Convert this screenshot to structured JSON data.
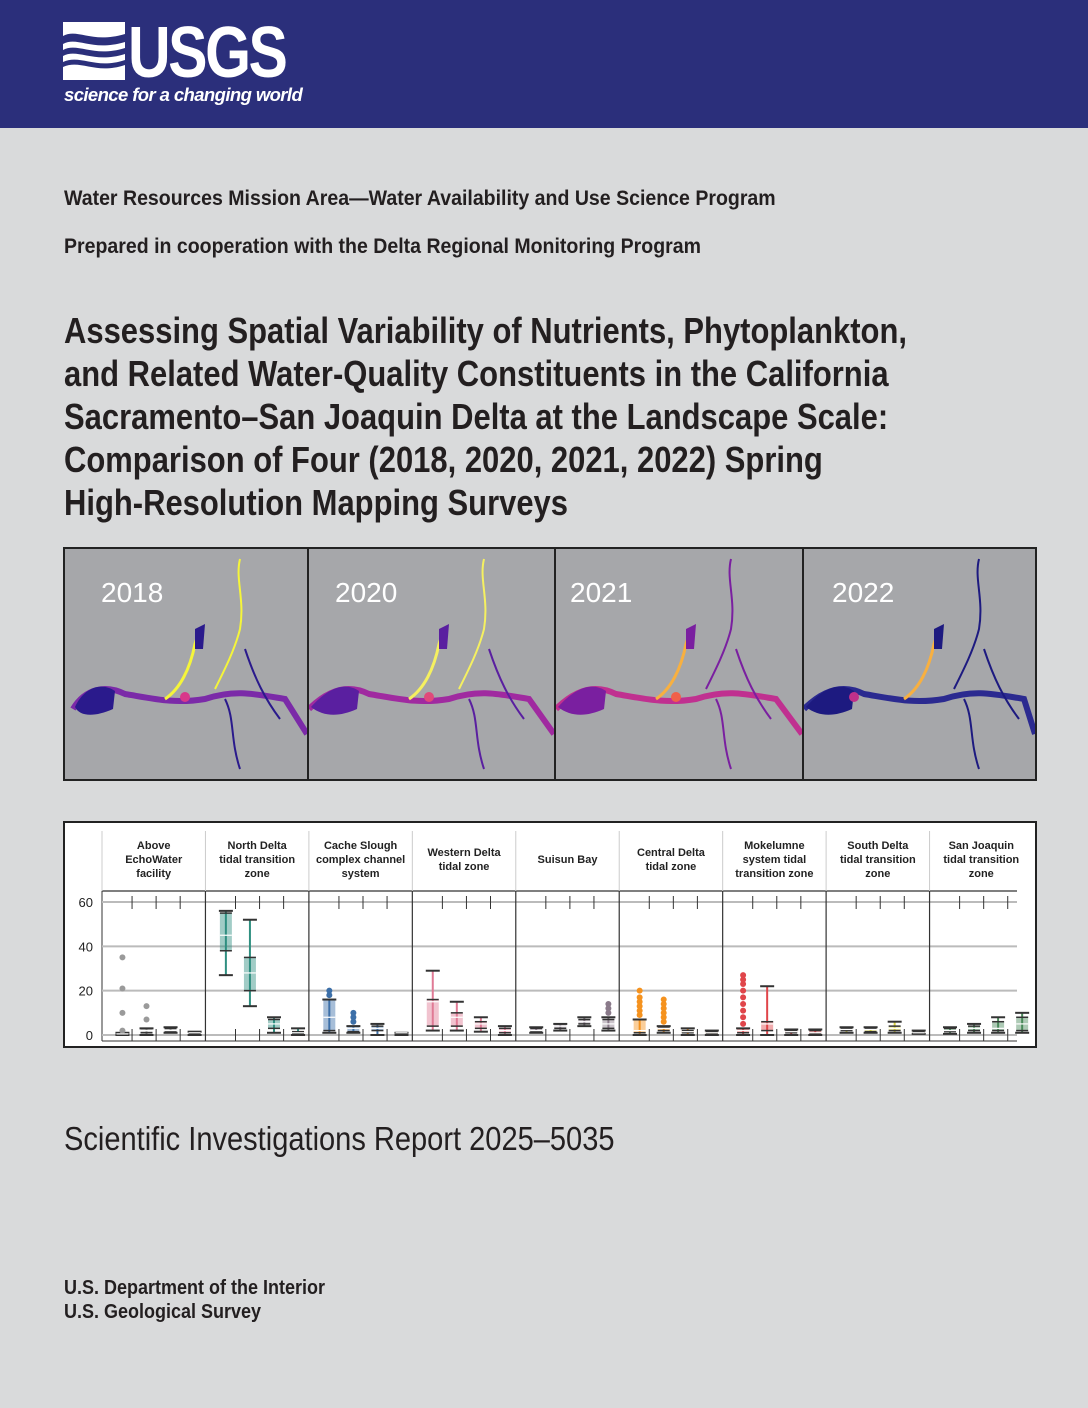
{
  "header": {
    "logo_text": "USGS",
    "logo_tagline": "science for a changing world",
    "color": "#2b2f7b"
  },
  "program_line": "Water Resources Mission Area—Water Availability and Use Science Program",
  "cooperation_line": "Prepared in cooperation with the Delta Regional Monitoring Program",
  "title_lines": [
    "Assessing Spatial Variability of Nutrients, Phytoplankton,",
    "and Related Water-Quality Constituents in the California",
    "Sacramento–San Joaquin Delta at the Landscape Scale:",
    "Comparison of Four (2018, 2020, 2021, 2022) Spring",
    "High-Resolution Mapping Surveys"
  ],
  "maps": [
    {
      "year": "2018",
      "palette": [
        "#2a1a8c",
        "#7b2aa8",
        "#d8388a",
        "#f5f53a"
      ]
    },
    {
      "year": "2020",
      "palette": [
        "#5a1fa0",
        "#a02aa0",
        "#e04a7a",
        "#f5f060"
      ]
    },
    {
      "year": "2021",
      "palette": [
        "#7a1fa0",
        "#c03090",
        "#f0604a",
        "#f8b040"
      ]
    },
    {
      "year": "2022",
      "palette": [
        "#1d1a80",
        "#2b2a90",
        "#c0308a",
        "#f8b040"
      ]
    }
  ],
  "chart_data": {
    "type": "box",
    "ylim": [
      0,
      60
    ],
    "yticks": [
      "0",
      "20",
      "40",
      "60"
    ],
    "grid": true,
    "categories": [
      {
        "label": "Above EchoWater facility",
        "lines": [
          "Above",
          "EchoWater",
          "facility"
        ],
        "color": "#9a9a9a",
        "boxes": [
          [
            0,
            0,
            0.5,
            1,
            1
          ],
          [
            0,
            1,
            2,
            3,
            3
          ],
          [
            1,
            1.5,
            2,
            3,
            3.5
          ],
          [
            0,
            0.5,
            1,
            1,
            1.5
          ]
        ],
        "outliers": [
          [
            35,
            21,
            10,
            2
          ],
          [
            13,
            7
          ],
          [],
          []
        ]
      },
      {
        "label": "North Delta tidal transition zone",
        "lines": [
          "North Delta",
          "tidal transition",
          "zone"
        ],
        "color": "#2f8f80",
        "boxes": [
          [
            27,
            38,
            45,
            55,
            56
          ],
          [
            13,
            20,
            28,
            35,
            52
          ],
          [
            1,
            3,
            5,
            7,
            8
          ],
          [
            0,
            0.5,
            1,
            1.5,
            3
          ]
        ],
        "outliers": [
          [],
          [],
          [],
          []
        ]
      },
      {
        "label": "Cache Slough complex channel system",
        "lines": [
          "Cache Slough",
          "complex channel",
          "system"
        ],
        "color": "#3c6fa8",
        "boxes": [
          [
            1,
            2,
            8,
            16,
            16
          ],
          [
            1,
            1.5,
            3,
            4,
            4
          ],
          [
            0,
            2,
            3,
            4,
            5
          ],
          [
            0,
            0.5,
            1,
            1,
            1
          ]
        ],
        "outliers": [
          [
            18,
            20
          ],
          [
            6,
            8,
            10
          ],
          [],
          []
        ]
      },
      {
        "label": "Western Delta tidal zone",
        "lines": [
          "Western Delta",
          "tidal zone"
        ],
        "color": "#e07a95",
        "boxes": [
          [
            2,
            4,
            15,
            16,
            29
          ],
          [
            2,
            4,
            8,
            10,
            15
          ],
          [
            1.5,
            3,
            5,
            6,
            8
          ],
          [
            0,
            1,
            2,
            3,
            4
          ]
        ],
        "outliers": [
          [],
          [],
          [],
          []
        ]
      },
      {
        "label": "Suisun Bay",
        "lines": [
          "Suisun Bay"
        ],
        "color": "#8a7a8a",
        "boxes": [
          [
            1,
            1.5,
            2,
            3,
            3.5
          ],
          [
            2,
            3,
            4,
            5,
            5
          ],
          [
            4,
            5,
            6,
            7,
            8
          ],
          [
            2,
            3,
            5,
            7,
            8
          ]
        ],
        "outliers": [
          [],
          [],
          [],
          [
            10,
            12,
            14
          ]
        ]
      },
      {
        "label": "Central Delta tidal zone",
        "lines": [
          "Central Delta",
          "tidal zone"
        ],
        "color": "#f5921e",
        "boxes": [
          [
            0,
            1,
            2,
            7,
            7
          ],
          [
            1,
            2,
            3,
            3.5,
            4
          ],
          [
            0,
            1,
            1.5,
            2,
            3
          ],
          [
            0,
            0.5,
            1,
            1.5,
            2
          ]
        ],
        "outliers": [
          [
            9,
            11,
            13,
            15,
            17,
            20
          ],
          [
            6,
            8,
            10,
            12,
            14,
            16
          ],
          [],
          []
        ]
      },
      {
        "label": "Mokelumne system tidal transition zone",
        "lines": [
          "Mokelumne",
          "system tidal",
          "transition zone"
        ],
        "color": "#e0454a",
        "boxes": [
          [
            0,
            1,
            2,
            3,
            3
          ],
          [
            0,
            2,
            5,
            6,
            22
          ],
          [
            0,
            1,
            1.5,
            2,
            2.5
          ],
          [
            0,
            0.5,
            1,
            2,
            2.5
          ]
        ],
        "outliers": [
          [
            5,
            8,
            11,
            14,
            17,
            20,
            23,
            25,
            27
          ],
          [],
          [],
          []
        ]
      },
      {
        "label": "South Delta tidal transition zone",
        "lines": [
          "South Delta",
          "tidal transition",
          "zone"
        ],
        "color": "#d8d040",
        "boxes": [
          [
            1,
            2,
            2.5,
            3,
            3.5
          ],
          [
            1,
            1.5,
            2.5,
            3,
            3.5
          ],
          [
            1,
            2,
            3,
            4,
            6
          ],
          [
            0.5,
            1,
            1,
            1.5,
            2
          ]
        ],
        "outliers": [
          [],
          [],
          [],
          []
        ]
      },
      {
        "label": "San Joaquin tidal transition zone",
        "lines": [
          "San Joaquin",
          "tidal transition",
          "zone"
        ],
        "color": "#4a8a5a",
        "boxes": [
          [
            0.5,
            1.5,
            2,
            3,
            3.5
          ],
          [
            1,
            2,
            3,
            4,
            5
          ],
          [
            1,
            2,
            3,
            6,
            8
          ],
          [
            1,
            2,
            5,
            8,
            10
          ]
        ],
        "outliers": [
          [],
          [],
          [],
          []
        ]
      }
    ]
  },
  "report_number": "Scientific Investigations Report 2025–5035",
  "department": "U.S. Department of the Interior",
  "agency": "U.S. Geological Survey"
}
